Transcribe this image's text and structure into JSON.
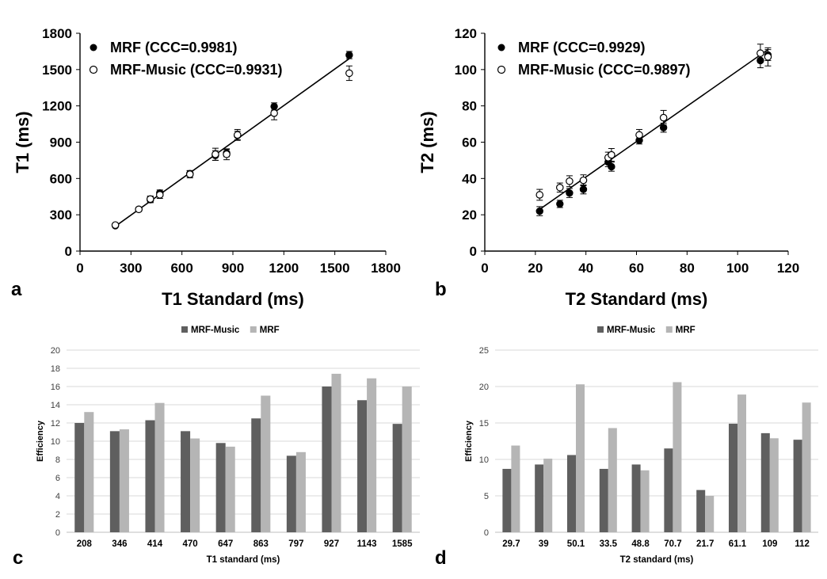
{
  "colors": {
    "dark": "#5f5f5f",
    "light": "#b5b5b5",
    "black": "#000000",
    "grid": "#d9d9d9"
  },
  "panel_labels": [
    "a",
    "b",
    "c",
    "d"
  ],
  "chart_data": [
    {
      "id": "a",
      "type": "scatter",
      "xlabel": "T1 Standard (ms)",
      "ylabel": "T1 (ms)",
      "xlim": [
        0,
        1800
      ],
      "ylim": [
        0,
        1800
      ],
      "xticks": [
        "0",
        "300",
        "600",
        "900",
        "1200",
        "1500",
        "1800"
      ],
      "yticks": [
        "0",
        "300",
        "600",
        "900",
        "1200",
        "1500",
        "1800"
      ],
      "legend": [
        "MRF (CCC=0.9981)",
        "MRF-Music (CCC=0.9931)"
      ],
      "series": [
        {
          "name": "MRF (CCC=0.9981)",
          "marker": "filled",
          "x": [
            208,
            346,
            414,
            470,
            647,
            797,
            863,
            927,
            1143,
            1585
          ],
          "y": [
            210,
            345,
            425,
            480,
            640,
            790,
            810,
            955,
            1195,
            1620
          ],
          "err": [
            10,
            15,
            25,
            25,
            25,
            40,
            30,
            35,
            30,
            30
          ]
        },
        {
          "name": "MRF-Music (CCC=0.9931)",
          "marker": "open",
          "x": [
            208,
            346,
            414,
            470,
            647,
            797,
            863,
            927,
            1143,
            1585
          ],
          "y": [
            215,
            345,
            430,
            465,
            635,
            800,
            800,
            960,
            1140,
            1470
          ],
          "err": [
            10,
            15,
            25,
            30,
            30,
            50,
            45,
            45,
            55,
            60
          ]
        }
      ],
      "fit": [
        [
          208,
          205
        ],
        [
          1585,
          1590
        ]
      ]
    },
    {
      "id": "b",
      "type": "scatter",
      "xlabel": "T2 Standard (ms)",
      "ylabel": "T2 (ms)",
      "xlim": [
        0,
        120
      ],
      "ylim": [
        0,
        120
      ],
      "xticks": [
        "0",
        "20",
        "40",
        "60",
        "80",
        "100",
        "120"
      ],
      "yticks": [
        "0",
        "20",
        "40",
        "60",
        "80",
        "100",
        "120"
      ],
      "legend": [
        "MRF (CCC=0.9929)",
        "MRF-Music (CCC=0.9897)"
      ],
      "series": [
        {
          "name": "MRF (CCC=0.9929)",
          "marker": "filled",
          "x": [
            21.7,
            29.7,
            33.5,
            39,
            48.8,
            50.1,
            61.1,
            70.7,
            109,
            112
          ],
          "y": [
            22,
            26,
            32,
            34,
            49,
            46.5,
            61,
            68,
            105,
            108
          ],
          "err": [
            2.5,
            2,
            2.5,
            2.5,
            2.5,
            2.5,
            2,
            2.5,
            4,
            3
          ]
        },
        {
          "name": "MRF-Music (CCC=0.9897)",
          "marker": "open",
          "x": [
            21.7,
            29.7,
            33.5,
            39,
            48.8,
            50.1,
            61.1,
            70.7,
            109,
            112
          ],
          "y": [
            31,
            35,
            38.5,
            39,
            51.5,
            53,
            64,
            73.5,
            109,
            107
          ],
          "err": [
            3,
            2.5,
            3,
            3,
            3,
            3.5,
            3,
            4,
            5,
            5
          ]
        }
      ],
      "fit": [
        [
          21.7,
          23
        ],
        [
          112,
          111
        ]
      ]
    },
    {
      "id": "c",
      "type": "bar",
      "xlabel": "T1 standard (ms)",
      "ylabel": "Efficiency",
      "ylim": [
        0,
        20
      ],
      "yticks": [
        "0",
        "2",
        "4",
        "6",
        "8",
        "10",
        "12",
        "14",
        "16",
        "18",
        "20"
      ],
      "categories": [
        "208",
        "346",
        "414",
        "470",
        "647",
        "863",
        "797",
        "927",
        "1143",
        "1585"
      ],
      "series": [
        {
          "name": "MRF-Music",
          "values": [
            12.0,
            11.1,
            12.3,
            11.1,
            9.8,
            12.5,
            8.4,
            16.0,
            14.5,
            11.9
          ]
        },
        {
          "name": "MRF",
          "values": [
            13.2,
            11.3,
            14.2,
            10.3,
            9.4,
            15.0,
            8.8,
            17.4,
            16.9,
            16.0
          ]
        }
      ]
    },
    {
      "id": "d",
      "type": "bar",
      "xlabel": "T2 standard (ms)",
      "ylabel": "Efficiency",
      "ylim": [
        0,
        25
      ],
      "yticks": [
        "0",
        "5",
        "10",
        "15",
        "20",
        "25"
      ],
      "categories": [
        "29.7",
        "39",
        "50.1",
        "33.5",
        "48.8",
        "70.7",
        "21.7",
        "61.1",
        "109",
        "112"
      ],
      "series": [
        {
          "name": "MRF-Music",
          "values": [
            8.7,
            9.3,
            10.6,
            8.7,
            9.3,
            11.5,
            5.8,
            14.9,
            13.6,
            12.7
          ]
        },
        {
          "name": "MRF",
          "values": [
            11.9,
            10.1,
            20.3,
            14.3,
            8.5,
            20.6,
            5.0,
            18.9,
            12.9,
            17.8
          ]
        }
      ]
    }
  ]
}
